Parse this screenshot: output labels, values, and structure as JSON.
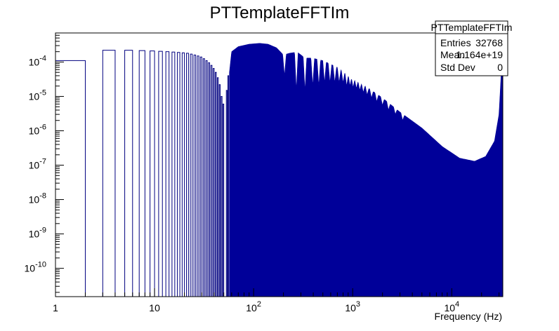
{
  "chart_data": {
    "type": "bar",
    "title": "PTTemplateFFTIm",
    "xlabel": "Frequency (Hz)",
    "ylabel": "",
    "x_scale": "log",
    "y_scale": "log",
    "xlim": [
      1,
      32768
    ],
    "ylim": [
      1.5e-11,
      0.0007
    ],
    "grid": false,
    "x_tick_labels": [
      {
        "value": 1,
        "base": "1",
        "exp": ""
      },
      {
        "value": 10,
        "base": "10",
        "exp": ""
      },
      {
        "value": 100,
        "base": "10",
        "exp": "2"
      },
      {
        "value": 1000,
        "base": "10",
        "exp": "3"
      },
      {
        "value": 10000,
        "base": "10",
        "exp": "4"
      }
    ],
    "y_tick_labels": [
      {
        "value": 0.0001,
        "base": "10",
        "exp": "-4"
      },
      {
        "value": 1e-05,
        "base": "10",
        "exp": "-5"
      },
      {
        "value": 1e-06,
        "base": "10",
        "exp": "-6"
      },
      {
        "value": 1e-07,
        "base": "10",
        "exp": "-7"
      },
      {
        "value": 1e-08,
        "base": "10",
        "exp": "-8"
      },
      {
        "value": 1e-09,
        "base": "10",
        "exp": "-9"
      },
      {
        "value": 1e-10,
        "base": "10",
        "exp": "-10"
      }
    ],
    "bars_low_frequency": [
      {
        "x": 1,
        "value": 0.00011
      },
      {
        "x": 3,
        "value": 0.00022
      },
      {
        "x": 5,
        "value": 0.00022
      },
      {
        "x": 7,
        "value": 0.000215
      },
      {
        "x": 9,
        "value": 0.00021
      },
      {
        "x": 11,
        "value": 0.000205
      },
      {
        "x": 13,
        "value": 0.0002
      },
      {
        "x": 15,
        "value": 0.000195
      },
      {
        "x": 17,
        "value": 0.00019
      },
      {
        "x": 19,
        "value": 0.000185
      },
      {
        "x": 21,
        "value": 0.00018
      },
      {
        "x": 23,
        "value": 0.00017
      },
      {
        "x": 25,
        "value": 0.00016
      },
      {
        "x": 27,
        "value": 0.00015
      },
      {
        "x": 29,
        "value": 0.00014
      },
      {
        "x": 31,
        "value": 0.000125
      },
      {
        "x": 33,
        "value": 0.00011
      },
      {
        "x": 35,
        "value": 9.5e-05
      },
      {
        "x": 37,
        "value": 8e-05
      },
      {
        "x": 39,
        "value": 6.5e-05
      },
      {
        "x": 41,
        "value": 5e-05
      },
      {
        "x": 43,
        "value": 3.5e-05
      },
      {
        "x": 45,
        "value": 2.2e-05
      },
      {
        "x": 47,
        "value": 1e-05
      },
      {
        "x": 49,
        "value": 6e-06
      },
      {
        "x": 53,
        "value": 1.5e-05
      },
      {
        "x": 55,
        "value": 4e-05
      }
    ],
    "filled_envelope": {
      "start_x": 57,
      "end_x": 32768,
      "upper_envelope": [
        {
          "x": 57,
          "value": 5e-05
        },
        {
          "x": 60,
          "value": 0.0002
        },
        {
          "x": 70,
          "value": 0.00028
        },
        {
          "x": 90,
          "value": 0.00033
        },
        {
          "x": 115,
          "value": 0.00035
        },
        {
          "x": 140,
          "value": 0.00033
        },
        {
          "x": 170,
          "value": 0.00026
        },
        {
          "x": 200,
          "value": 0.00016
        },
        {
          "x": 230,
          "value": 0.00018
        },
        {
          "x": 275,
          "value": 0.000195
        },
        {
          "x": 330,
          "value": 0.00013
        },
        {
          "x": 390,
          "value": 0.00013
        },
        {
          "x": 500,
          "value": 0.00011
        },
        {
          "x": 700,
          "value": 7e-05
        },
        {
          "x": 1000,
          "value": 3.5e-05
        },
        {
          "x": 1500,
          "value": 1.6e-05
        },
        {
          "x": 2000,
          "value": 9e-06
        },
        {
          "x": 3000,
          "value": 3.5e-06
        },
        {
          "x": 5000,
          "value": 1.2e-06
        },
        {
          "x": 8000,
          "value": 3.5e-07
        },
        {
          "x": 12000,
          "value": 1.6e-07
        },
        {
          "x": 17000,
          "value": 1.3e-07
        },
        {
          "x": 22000,
          "value": 1.8e-07
        },
        {
          "x": 27000,
          "value": 5e-07
        },
        {
          "x": 30000,
          "value": 3e-06
        },
        {
          "x": 32000,
          "value": 0.0001
        }
      ],
      "notches": [
        {
          "x": 205,
          "value": 4e-05
        },
        {
          "x": 270,
          "value": 1.5e-05
        },
        {
          "x": 330,
          "value": 1.5e-05
        },
        {
          "x": 395,
          "value": 2e-05
        },
        {
          "x": 455,
          "value": 2e-05
        },
        {
          "x": 520,
          "value": 2.5e-05
        },
        {
          "x": 590,
          "value": 2.5e-05
        },
        {
          "x": 660,
          "value": 2.5e-05
        },
        {
          "x": 730,
          "value": 2.5e-05
        },
        {
          "x": 800,
          "value": 2.5e-05
        },
        {
          "x": 870,
          "value": 2e-05
        },
        {
          "x": 940,
          "value": 2e-05
        },
        {
          "x": 1010,
          "value": 1.8e-05
        },
        {
          "x": 1090,
          "value": 1.7e-05
        },
        {
          "x": 1180,
          "value": 1.5e-05
        },
        {
          "x": 1280,
          "value": 1.3e-05
        },
        {
          "x": 1400,
          "value": 1.1e-05
        },
        {
          "x": 1550,
          "value": 9e-06
        },
        {
          "x": 1750,
          "value": 7e-06
        },
        {
          "x": 2000,
          "value": 5.5e-06
        },
        {
          "x": 2300,
          "value": 4e-06
        },
        {
          "x": 2700,
          "value": 3e-06
        },
        {
          "x": 3200,
          "value": 2e-06
        }
      ]
    },
    "stats_box": {
      "title": "PTTemplateFFTIm",
      "rows": [
        {
          "label": "Entries",
          "value": "32768"
        },
        {
          "label": "Mean",
          "value": "1.164e+19"
        },
        {
          "label": "Std Dev",
          "value": "0"
        }
      ]
    },
    "colors": {
      "fill": "#000099",
      "line": "#000080",
      "frame": "#000000",
      "background": "#ffffff"
    }
  }
}
